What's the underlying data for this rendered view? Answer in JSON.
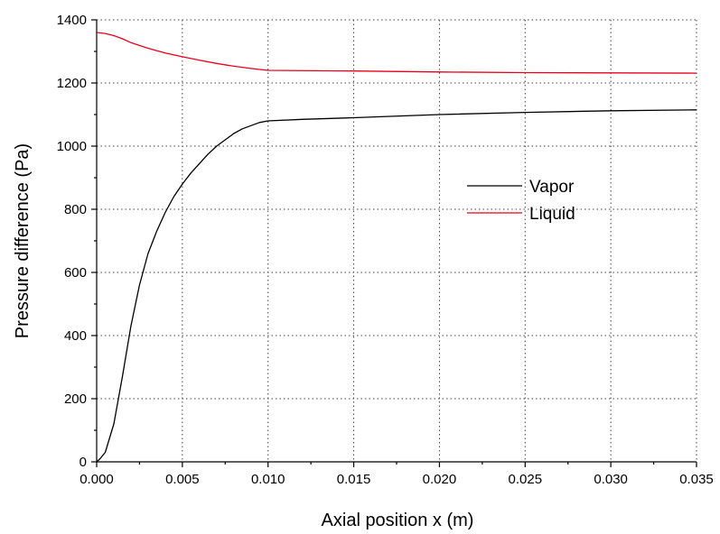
{
  "chart_data": {
    "type": "line",
    "xlabel": "Axial position x (m)",
    "ylabel": "Pressure difference (Pa)",
    "xlim": [
      0,
      0.035
    ],
    "ylim": [
      0,
      1400
    ],
    "xticks": [
      0.0,
      0.005,
      0.01,
      0.015,
      0.02,
      0.025,
      0.03,
      0.035
    ],
    "xtick_labels": [
      "0.000",
      "0.005",
      "0.010",
      "0.015",
      "0.020",
      "0.025",
      "0.030",
      "0.035"
    ],
    "yticks": [
      0,
      200,
      400,
      600,
      800,
      1000,
      1200,
      1400
    ],
    "ytick_labels": [
      "0",
      "200",
      "400",
      "600",
      "800",
      "1000",
      "1200",
      "1400"
    ],
    "grid": true,
    "legend_position": "center-right",
    "series": [
      {
        "name": "Vapor",
        "color": "#000000",
        "x": [
          0.0,
          0.0002,
          0.0005,
          0.001,
          0.0015,
          0.002,
          0.0025,
          0.003,
          0.0035,
          0.004,
          0.0045,
          0.005,
          0.0055,
          0.006,
          0.0065,
          0.007,
          0.0075,
          0.008,
          0.0085,
          0.009,
          0.0095,
          0.01,
          0.012,
          0.015,
          0.02,
          0.025,
          0.03,
          0.035
        ],
        "y": [
          0,
          10,
          30,
          120,
          270,
          430,
          560,
          660,
          730,
          790,
          840,
          880,
          915,
          945,
          975,
          1000,
          1020,
          1040,
          1055,
          1065,
          1075,
          1080,
          1085,
          1090,
          1100,
          1107,
          1112,
          1115
        ]
      },
      {
        "name": "Liquid",
        "color": "#e8001c",
        "x": [
          0.0,
          0.0005,
          0.001,
          0.0015,
          0.002,
          0.003,
          0.004,
          0.005,
          0.006,
          0.007,
          0.008,
          0.009,
          0.01,
          0.015,
          0.02,
          0.025,
          0.03,
          0.035
        ],
        "y": [
          1360,
          1357,
          1350,
          1340,
          1328,
          1310,
          1295,
          1283,
          1272,
          1262,
          1253,
          1246,
          1240,
          1238,
          1235,
          1233,
          1232,
          1231
        ]
      }
    ]
  }
}
